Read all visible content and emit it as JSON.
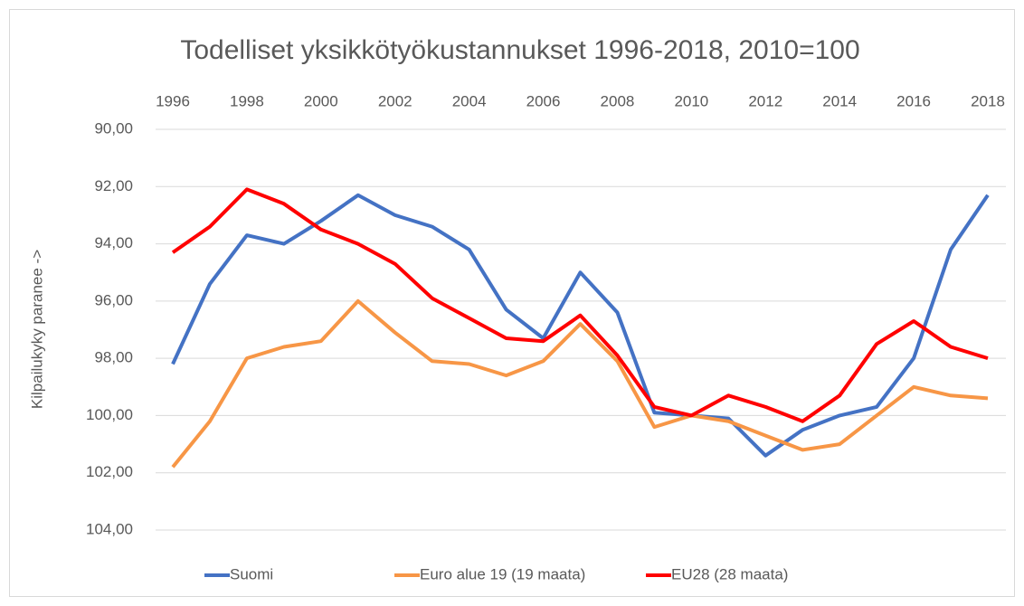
{
  "chart_data": {
    "type": "line",
    "title": "Todelliset yksikkötyökustannukset 1996-2018, 2010=100",
    "y_label": "Kilpailukyky paranee ->",
    "x": [
      1996,
      1997,
      1998,
      1999,
      2000,
      2001,
      2002,
      2003,
      2004,
      2005,
      2006,
      2007,
      2008,
      2009,
      2010,
      2011,
      2012,
      2013,
      2014,
      2015,
      2016,
      2017,
      2018
    ],
    "xlim": [
      1996,
      2018
    ],
    "xticks": [
      1996,
      1998,
      2000,
      2002,
      2004,
      2006,
      2008,
      2010,
      2012,
      2014,
      2016,
      2018
    ],
    "ylim": [
      90,
      104
    ],
    "y_inverted": true,
    "yticks": [
      {
        "value": 90,
        "label": "90,00"
      },
      {
        "value": 92,
        "label": "92,00"
      },
      {
        "value": 94,
        "label": "94,00"
      },
      {
        "value": 96,
        "label": "96,00"
      },
      {
        "value": 98,
        "label": "98,00"
      },
      {
        "value": 100,
        "label": "100,00"
      },
      {
        "value": 102,
        "label": "102,00"
      },
      {
        "value": 104,
        "label": "104,00"
      }
    ],
    "grid": true,
    "legend": "bottom",
    "series": [
      {
        "name": "Suomi",
        "color": "#4472c4",
        "values": [
          98.2,
          95.4,
          93.7,
          94.0,
          93.2,
          92.3,
          93.0,
          93.4,
          94.2,
          96.3,
          97.3,
          95.0,
          96.4,
          99.9,
          100.0,
          100.1,
          101.4,
          100.5,
          100.0,
          99.7,
          98.0,
          94.2,
          92.3
        ]
      },
      {
        "name": "Euro alue 19 (19 maata)",
        "color": "#f79646",
        "values": [
          101.8,
          100.2,
          98.0,
          97.6,
          97.4,
          96.0,
          97.1,
          98.1,
          98.2,
          98.6,
          98.1,
          96.8,
          98.1,
          100.4,
          100.0,
          100.2,
          100.7,
          101.2,
          101.0,
          100.0,
          99.0,
          99.3,
          99.4
        ]
      },
      {
        "name": "EU28 (28 maata)",
        "color": "#ff0000",
        "values": [
          94.3,
          93.4,
          92.1,
          92.6,
          93.5,
          94.0,
          94.7,
          95.9,
          96.6,
          97.3,
          97.4,
          96.5,
          97.9,
          99.7,
          100.0,
          99.3,
          99.7,
          100.2,
          99.3,
          97.5,
          96.7,
          97.6,
          98.0
        ]
      }
    ]
  }
}
